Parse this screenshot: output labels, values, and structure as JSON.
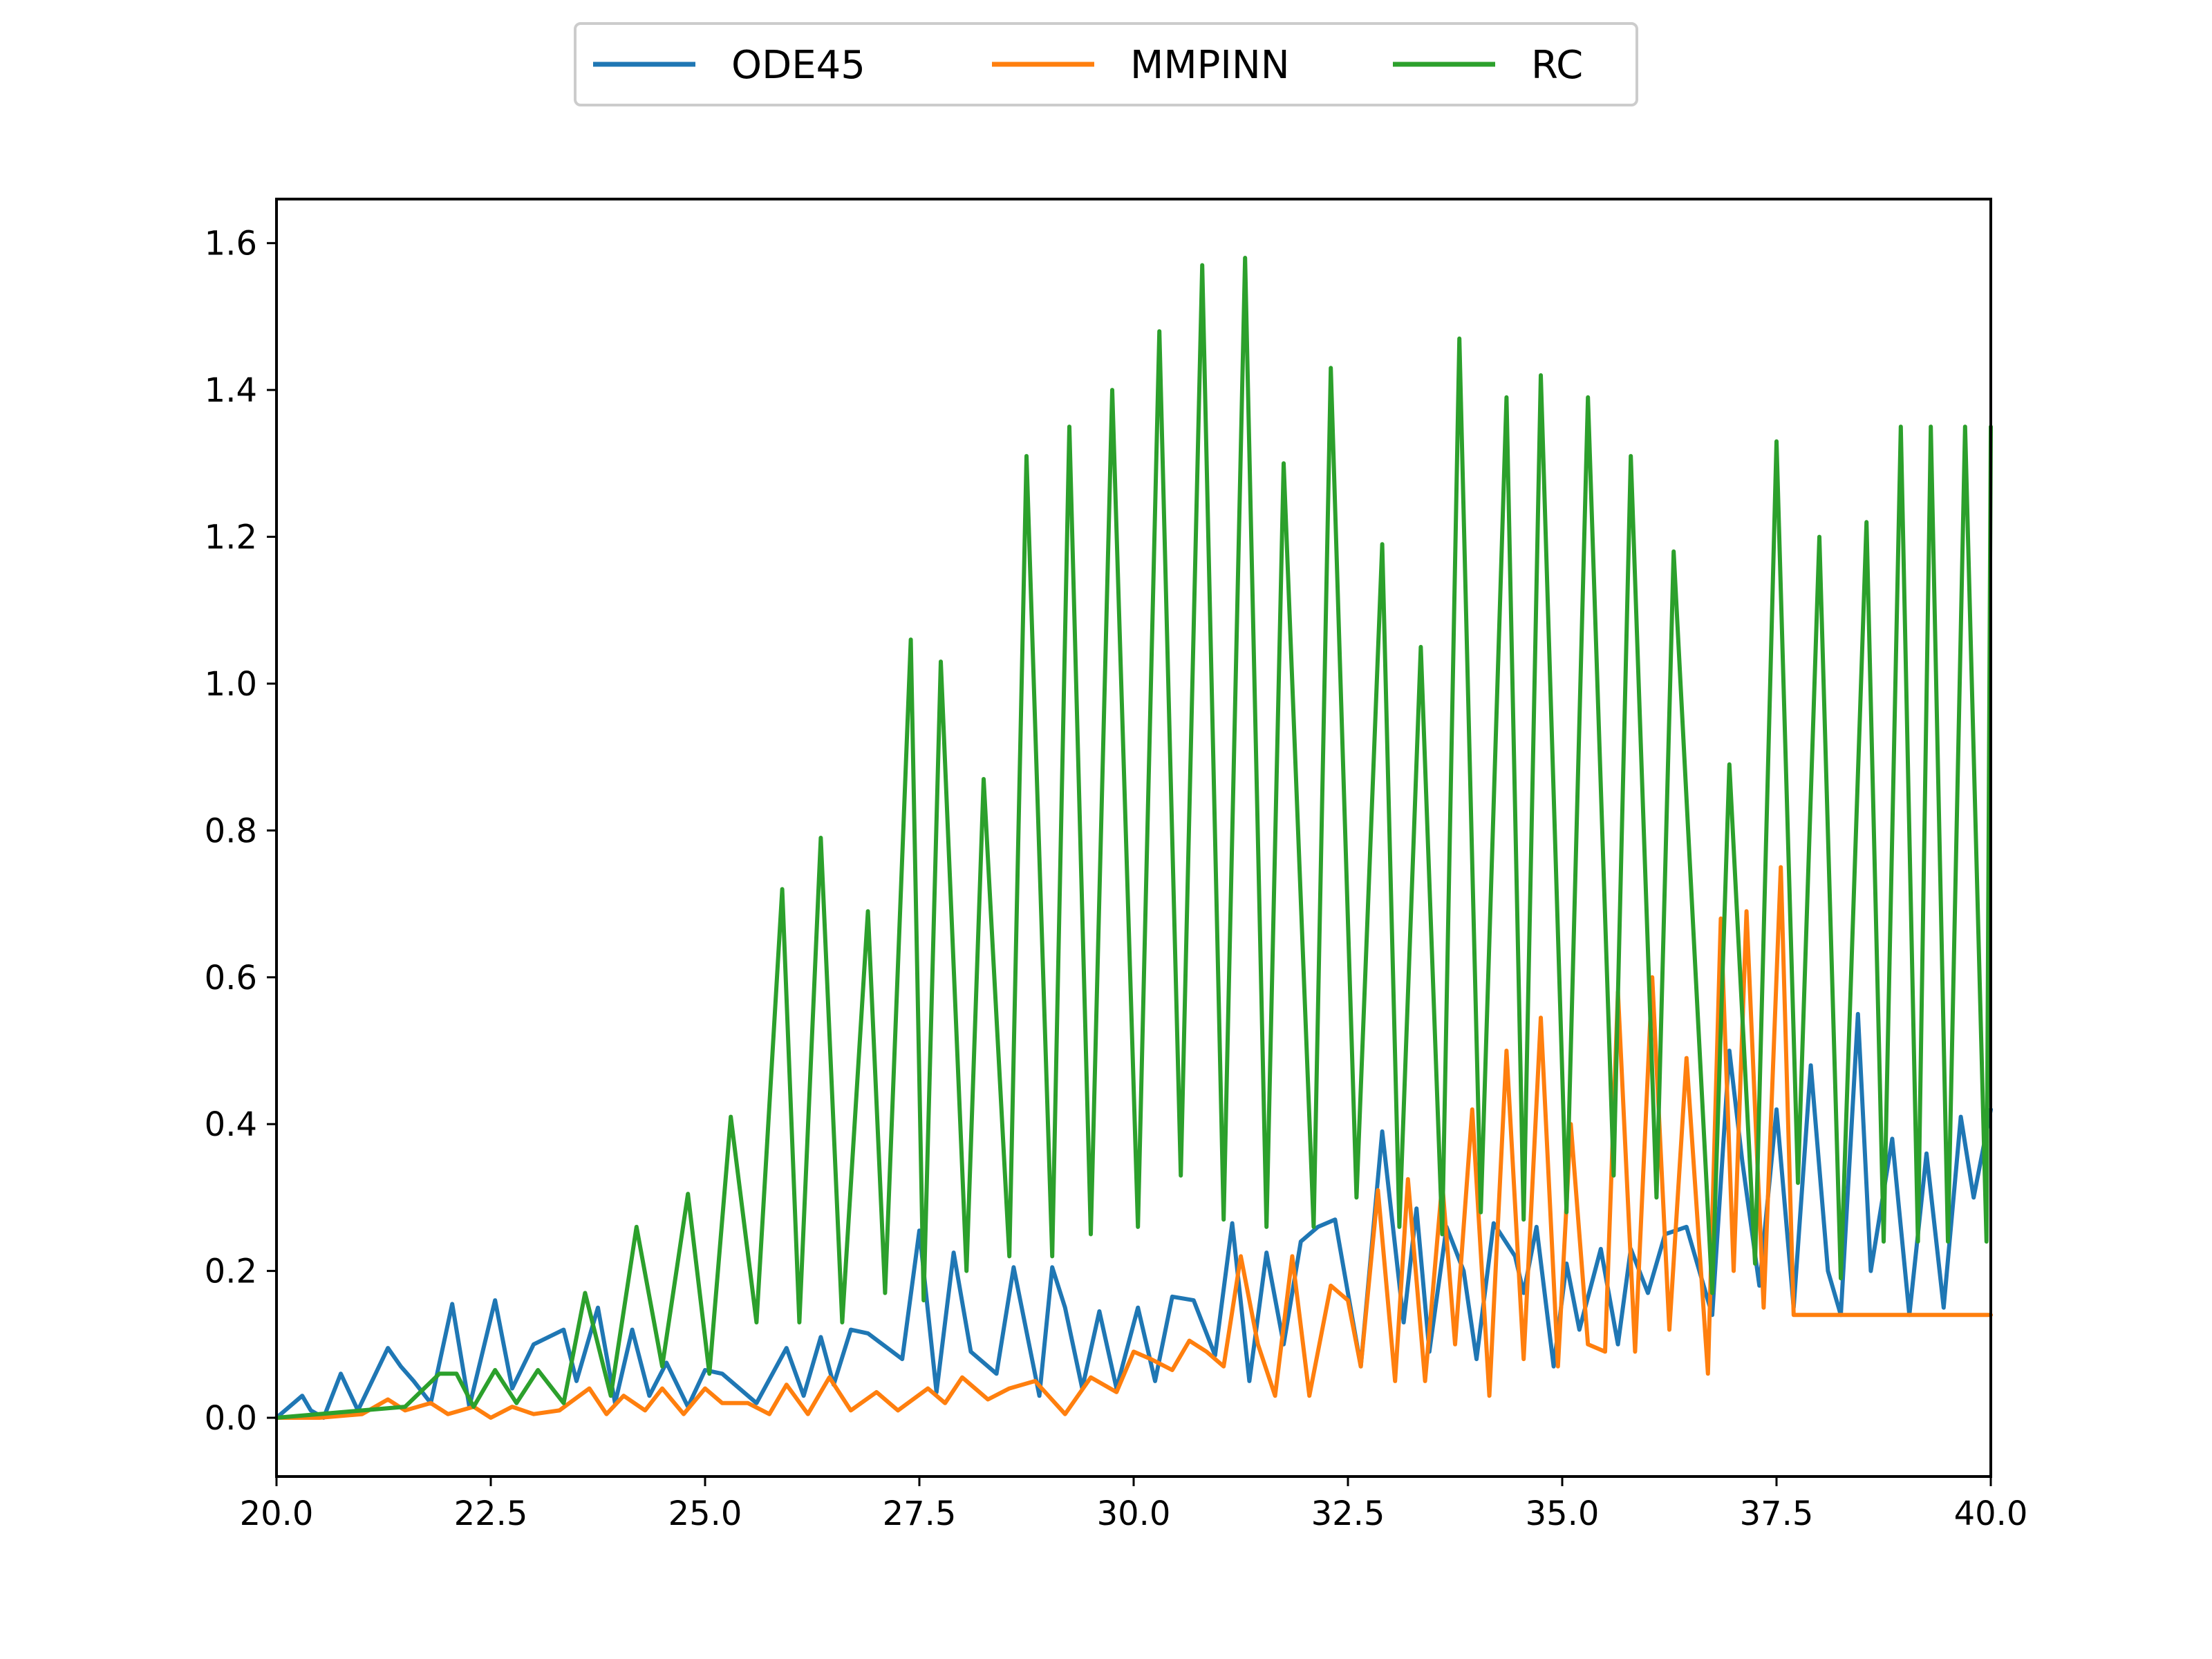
{
  "chart_data": {
    "type": "line",
    "title": "",
    "xlabel": "",
    "ylabel": "",
    "xlim": [
      20.0,
      40.0
    ],
    "ylim": [
      -0.08,
      1.66
    ],
    "grid": false,
    "legend_placement": "top-center, outside plot",
    "x_ticks": [
      "20.0",
      "22.5",
      "25.0",
      "27.5",
      "30.0",
      "32.5",
      "35.0",
      "37.5",
      "40.0"
    ],
    "x_tick_values": [
      20.0,
      22.5,
      25.0,
      27.5,
      30.0,
      32.5,
      35.0,
      37.5,
      40.0
    ],
    "y_ticks": [
      "0.0",
      "0.2",
      "0.4",
      "0.6",
      "0.8",
      "1.0",
      "1.2",
      "1.4",
      "1.6"
    ],
    "y_tick_values": [
      0.0,
      0.2,
      0.4,
      0.6,
      0.8,
      1.0,
      1.2,
      1.4,
      1.6
    ],
    "series": [
      {
        "name": "ODE45",
        "color": "#1f77b4",
        "x": [
          20.0,
          20.3,
          20.4,
          20.55,
          20.75,
          20.95,
          21.3,
          21.45,
          21.6,
          21.8,
          22.05,
          22.25,
          22.55,
          22.75,
          23.0,
          23.35,
          23.5,
          23.75,
          23.95,
          24.15,
          24.35,
          24.55,
          24.8,
          25.0,
          25.2,
          25.6,
          25.95,
          26.15,
          26.35,
          26.5,
          26.7,
          26.9,
          27.3,
          27.5,
          27.7,
          27.9,
          28.1,
          28.4,
          28.6,
          28.9,
          29.05,
          29.2,
          29.4,
          29.6,
          29.8,
          30.05,
          30.25,
          30.45,
          30.7,
          30.95,
          31.15,
          31.35,
          31.55,
          31.75,
          31.95,
          32.15,
          32.35,
          32.65,
          32.9,
          33.15,
          33.3,
          33.45,
          33.65,
          33.85,
          34.0,
          34.2,
          34.45,
          34.55,
          34.7,
          34.9,
          35.05,
          35.2,
          35.45,
          35.65,
          35.8,
          36.0,
          36.2,
          36.45,
          36.75,
          36.95,
          37.1,
          37.3,
          37.5,
          37.7,
          37.9,
          38.1,
          38.25,
          38.45,
          38.6,
          38.85,
          39.05,
          39.25,
          39.45,
          39.65,
          39.8,
          40.0
        ],
        "y": [
          0.0,
          0.03,
          0.01,
          0.0,
          0.06,
          0.01,
          0.095,
          0.07,
          0.05,
          0.02,
          0.155,
          0.015,
          0.16,
          0.04,
          0.1,
          0.12,
          0.05,
          0.15,
          0.02,
          0.12,
          0.03,
          0.075,
          0.015,
          0.065,
          0.06,
          0.02,
          0.095,
          0.03,
          0.11,
          0.045,
          0.12,
          0.115,
          0.08,
          0.255,
          0.035,
          0.225,
          0.09,
          0.06,
          0.205,
          0.03,
          0.205,
          0.15,
          0.04,
          0.145,
          0.04,
          0.15,
          0.05,
          0.165,
          0.16,
          0.085,
          0.265,
          0.05,
          0.225,
          0.1,
          0.24,
          0.26,
          0.27,
          0.07,
          0.39,
          0.13,
          0.285,
          0.09,
          0.26,
          0.2,
          0.08,
          0.265,
          0.22,
          0.17,
          0.26,
          0.07,
          0.21,
          0.12,
          0.23,
          0.1,
          0.23,
          0.17,
          0.25,
          0.26,
          0.14,
          0.5,
          0.35,
          0.18,
          0.42,
          0.15,
          0.48,
          0.2,
          0.14,
          0.55,
          0.2,
          0.38,
          0.14,
          0.36,
          0.15,
          0.41,
          0.3,
          0.42
        ]
      },
      {
        "name": "MMPINN",
        "color": "#ff7f0e",
        "x": [
          20.0,
          20.5,
          21.0,
          21.3,
          21.5,
          21.8,
          22.0,
          22.3,
          22.5,
          22.75,
          23.0,
          23.3,
          23.65,
          23.85,
          24.05,
          24.3,
          24.5,
          24.75,
          25.0,
          25.2,
          25.5,
          25.75,
          25.95,
          26.2,
          26.45,
          26.7,
          27.0,
          27.25,
          27.6,
          27.8,
          28.0,
          28.3,
          28.55,
          28.85,
          29.2,
          29.5,
          29.8,
          30.0,
          30.2,
          30.45,
          30.65,
          30.85,
          31.05,
          31.25,
          31.45,
          31.65,
          31.85,
          32.05,
          32.3,
          32.5,
          32.65,
          32.85,
          33.05,
          33.2,
          33.4,
          33.6,
          33.75,
          33.95,
          34.15,
          34.35,
          34.55,
          34.75,
          34.95,
          35.1,
          35.3,
          35.5,
          35.65,
          35.85,
          36.05,
          36.25,
          36.45,
          36.7,
          36.85,
          37.0,
          37.15,
          37.35,
          37.55,
          37.7,
          37.9,
          38.1,
          38.3,
          38.5,
          38.65,
          38.85,
          39.0,
          39.25,
          39.45,
          39.65,
          39.85,
          40.0
        ],
        "y": [
          0.0,
          0.0,
          0.005,
          0.025,
          0.01,
          0.02,
          0.005,
          0.015,
          0.0,
          0.015,
          0.005,
          0.01,
          0.04,
          0.005,
          0.03,
          0.01,
          0.04,
          0.005,
          0.04,
          0.02,
          0.02,
          0.005,
          0.045,
          0.005,
          0.055,
          0.01,
          0.035,
          0.01,
          0.04,
          0.02,
          0.055,
          0.025,
          0.04,
          0.05,
          0.005,
          0.055,
          0.035,
          0.09,
          0.08,
          0.065,
          0.105,
          0.09,
          0.07,
          0.22,
          0.1,
          0.03,
          0.22,
          0.03,
          0.18,
          0.16,
          0.07,
          0.31,
          0.05,
          0.325,
          0.05,
          0.32,
          0.1,
          0.42,
          0.03,
          0.5,
          0.08,
          0.545,
          0.07,
          0.4,
          0.1,
          0.09,
          0.58,
          0.09,
          0.6,
          0.12,
          0.49,
          0.06,
          0.68,
          0.2,
          0.69,
          0.15,
          0.75,
          0.14,
          0.14,
          0.14,
          0.14,
          0.14,
          0.14,
          0.14,
          0.14,
          0.14,
          0.14,
          0.14,
          0.14,
          0.14
        ]
      },
      {
        "name": "RC",
        "color": "#2ca02c",
        "x": [
          20.0,
          21.0,
          21.5,
          21.9,
          22.1,
          22.3,
          22.55,
          22.8,
          23.05,
          23.35,
          23.6,
          23.9,
          24.2,
          24.5,
          24.8,
          25.05,
          25.3,
          25.6,
          25.9,
          26.1,
          26.35,
          26.6,
          26.9,
          27.1,
          27.4,
          27.55,
          27.75,
          28.05,
          28.25,
          28.55,
          28.75,
          29.05,
          29.25,
          29.5,
          29.75,
          30.05,
          30.3,
          30.55,
          30.8,
          31.05,
          31.3,
          31.55,
          31.75,
          32.1,
          32.3,
          32.6,
          32.9,
          33.1,
          33.35,
          33.6,
          33.8,
          34.05,
          34.35,
          34.55,
          34.75,
          35.05,
          35.3,
          35.6,
          35.8,
          36.1,
          36.3,
          36.75,
          36.95,
          37.25,
          37.5,
          37.75,
          38.0,
          38.25,
          38.55,
          38.75,
          38.95,
          39.15,
          39.3,
          39.5,
          39.7,
          39.95,
          40.0
        ],
        "y": [
          0.0,
          0.01,
          0.015,
          0.06,
          0.06,
          0.015,
          0.065,
          0.02,
          0.065,
          0.02,
          0.17,
          0.03,
          0.26,
          0.07,
          0.305,
          0.06,
          0.41,
          0.13,
          0.72,
          0.13,
          0.79,
          0.13,
          0.69,
          0.17,
          1.06,
          0.16,
          1.03,
          0.2,
          0.87,
          0.22,
          1.31,
          0.22,
          1.35,
          0.25,
          1.4,
          0.26,
          1.48,
          0.33,
          1.57,
          0.27,
          1.58,
          0.26,
          1.3,
          0.26,
          1.43,
          0.3,
          1.19,
          0.26,
          1.05,
          0.25,
          1.47,
          0.28,
          1.39,
          0.27,
          1.42,
          0.28,
          1.39,
          0.33,
          1.31,
          0.3,
          1.18,
          0.17,
          0.89,
          0.21,
          1.33,
          0.32,
          1.2,
          0.19,
          1.22,
          0.24,
          1.35,
          0.24,
          1.35,
          0.24,
          1.35,
          0.24,
          1.35
        ]
      }
    ]
  }
}
